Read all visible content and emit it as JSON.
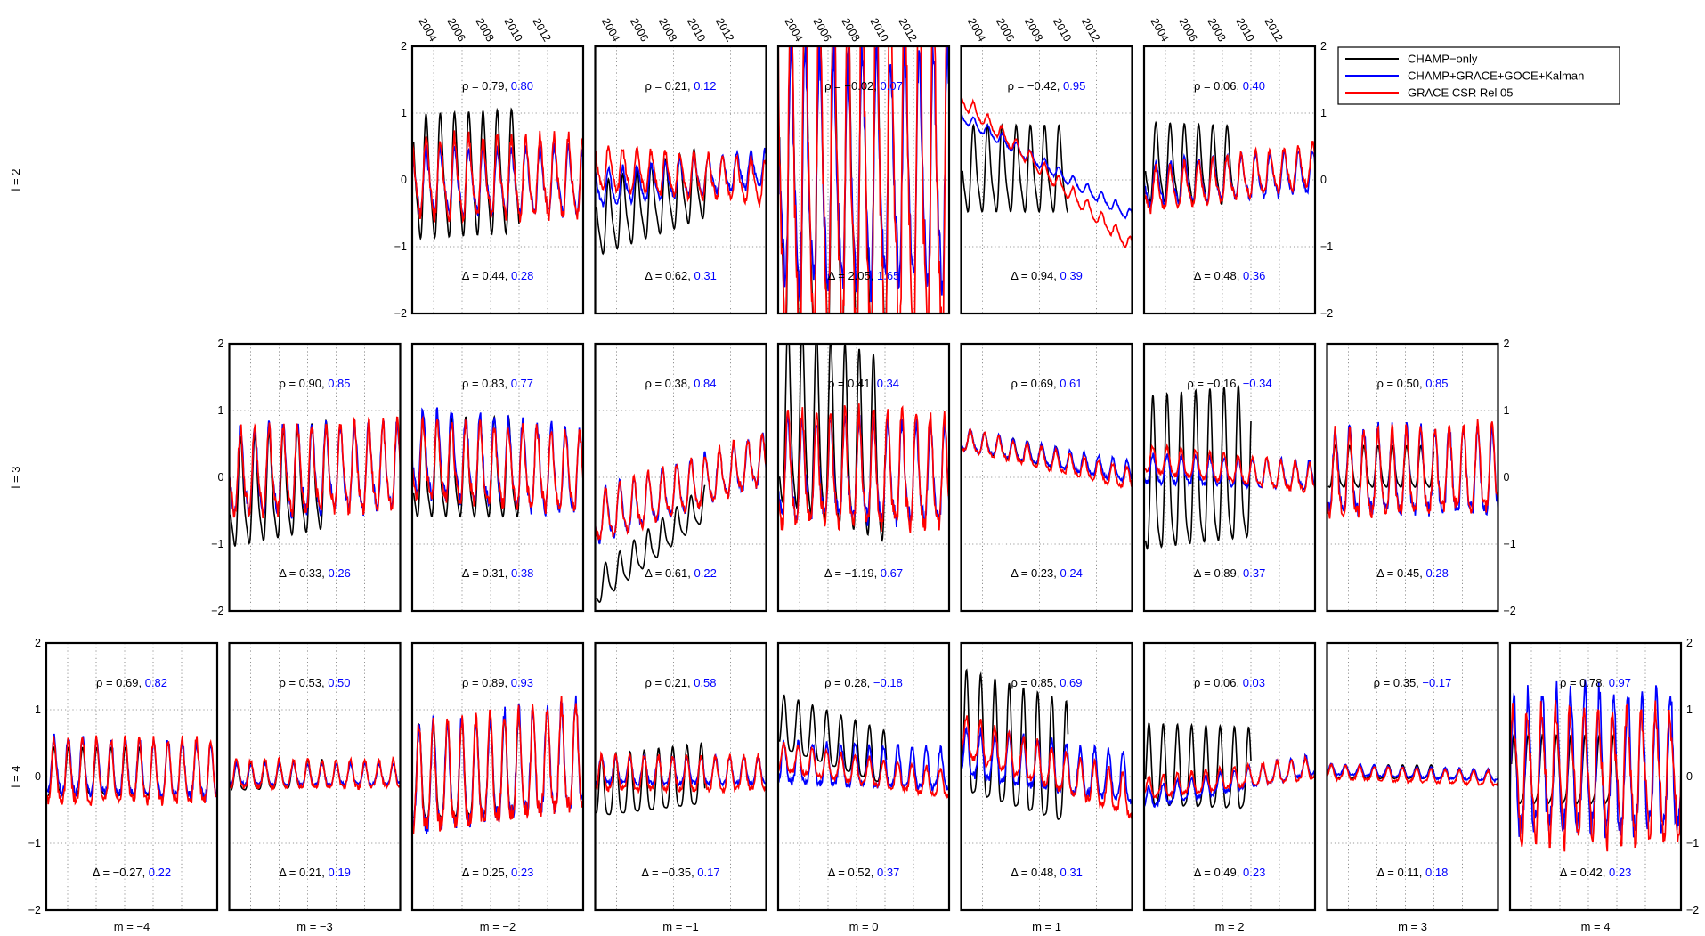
{
  "figure": {
    "x_tick_labels": [
      "2004",
      "2006",
      "2008",
      "2010",
      "2012"
    ],
    "y_tick_labels": [
      "2",
      "1",
      "0",
      "−1",
      "−2"
    ]
  },
  "chart_data": {
    "type": "line",
    "layout": "grid of panels, rows = degree l (2,3,4), columns = order m (-4..4)",
    "xlim": [
      2002.5,
      2014.5
    ],
    "ylim": [
      -2,
      2
    ],
    "x_ticks": [
      2004,
      2006,
      2008,
      2010,
      2012
    ],
    "y_ticks": [
      -2,
      -1,
      0,
      1,
      2
    ],
    "grid": "dotted vertical and horizontal",
    "legend": {
      "placement": "top-right",
      "entries": [
        {
          "name": "CHAMP−only",
          "color": "#000000"
        },
        {
          "name": "CHAMP+GRACE+GOCE+Kalman",
          "color": "#0000ff"
        },
        {
          "name": "GRACE CSR Rel 05",
          "color": "#ff0000"
        }
      ]
    },
    "row_labels": [
      "l = 2",
      "l = 3",
      "l = 4"
    ],
    "column_labels": [
      "m = −4",
      "m = −3",
      "m = −2",
      "m = −1",
      "m = 0",
      "m = 1",
      "m = 2",
      "m = 3",
      "m = 4"
    ],
    "panels": [
      {
        "l": 2,
        "m": -2,
        "rho": [
          "ρ = 0.79,",
          "0.80"
        ],
        "delta": [
          "Δ = 0.44,",
          "0.28"
        ],
        "series": {
          "champ": {
            "amp": 0.85,
            "trend": 0.15,
            "bias": 0.05,
            "end": 2010.0
          },
          "kalman": {
            "amp": 0.45,
            "trend": 0.0,
            "bias": -0.05
          },
          "grace": {
            "amp": 0.55,
            "trend": 0.0,
            "bias": 0.0
          }
        }
      },
      {
        "l": 2,
        "m": -1,
        "rho": [
          "ρ = 0.21,",
          "0.12"
        ],
        "delta": [
          "Δ = 0.62,",
          "0.31"
        ],
        "series": {
          "champ": {
            "amp": 0.5,
            "trend": 0.9,
            "bias": -0.2,
            "end": 2010.3
          },
          "kalman": {
            "amp": 0.25,
            "trend": 0.3,
            "bias": 0.0
          },
          "grace": {
            "amp": 0.3,
            "trend": -0.2,
            "bias": 0.05
          }
        }
      },
      {
        "l": 2,
        "m": 0,
        "rho": [
          "ρ = −0.02,",
          "0.07"
        ],
        "delta": [
          "Δ = 2.05,",
          "1.65"
        ],
        "series": {
          "champ": {
            "amp": 2.4,
            "trend": 0.0,
            "bias": 0.0,
            "end": 2010.2
          },
          "kalman": {
            "amp": 1.6,
            "trend": 0.0,
            "bias": 0.0
          },
          "grace": {
            "amp": 2.6,
            "trend": 0.0,
            "bias": 0.0
          }
        }
      },
      {
        "l": 2,
        "m": 1,
        "rho": [
          "ρ = −0.42,",
          "0.95"
        ],
        "delta": [
          "Δ = 0.94,",
          "0.39"
        ],
        "series": {
          "champ": {
            "amp": 0.6,
            "trend": 0.0,
            "bias": 0.1,
            "end": 2010.0
          },
          "kalman": {
            "amp": 0.08,
            "trend": -1.5,
            "bias": 0.2
          },
          "grace": {
            "amp": 0.1,
            "trend": -2.2,
            "bias": 0.1
          }
        }
      },
      {
        "l": 2,
        "m": 2,
        "rho": [
          "ρ = 0.06,",
          "0.40"
        ],
        "delta": [
          "Δ = 0.48,",
          "0.36"
        ],
        "series": {
          "champ": {
            "amp": 0.55,
            "trend": -0.1,
            "bias": 0.15,
            "end": 2008.7
          },
          "kalman": {
            "amp": 0.3,
            "trend": 0.2,
            "bias": 0.0
          },
          "grace": {
            "amp": 0.3,
            "trend": 0.4,
            "bias": 0.0
          }
        }
      },
      {
        "l": 3,
        "m": -3,
        "rho": [
          "ρ = 0.90,",
          "0.85"
        ],
        "delta": [
          "Δ = 0.33,",
          "0.26"
        ],
        "series": {
          "champ": {
            "amp": 0.75,
            "trend": 0.5,
            "bias": -0.1,
            "end": 2009.5
          },
          "kalman": {
            "amp": 0.6,
            "trend": 0.1,
            "bias": 0.05
          },
          "grace": {
            "amp": 0.6,
            "trend": 0.1,
            "bias": 0.05
          }
        }
      },
      {
        "l": 3,
        "m": -2,
        "rho": [
          "ρ = 0.83,",
          "0.77"
        ],
        "delta": [
          "Δ = 0.31,",
          "0.38"
        ],
        "series": {
          "champ": {
            "amp": 0.7,
            "trend": 0.0,
            "bias": 0.05,
            "end": 2010.0
          },
          "kalman": {
            "amp": 0.6,
            "trend": -0.3,
            "bias": 0.15
          },
          "grace": {
            "amp": 0.55,
            "trend": -0.2,
            "bias": 0.1
          }
        }
      },
      {
        "l": 3,
        "m": -1,
        "rho": [
          "ρ = 0.38,",
          "0.84"
        ],
        "delta": [
          "Δ = 0.61,",
          "0.22"
        ],
        "series": {
          "champ": {
            "amp": 0.25,
            "trend": 2.0,
            "bias": -0.7,
            "end": 2010.2
          },
          "kalman": {
            "amp": 0.35,
            "trend": 0.9,
            "bias": -0.2
          },
          "grace": {
            "amp": 0.35,
            "trend": 0.9,
            "bias": -0.2
          }
        }
      },
      {
        "l": 3,
        "m": 0,
        "rho": [
          "ρ = 0.41,",
          "0.34"
        ],
        "delta": [
          "Δ = −1.19,",
          "0.67"
        ],
        "series": {
          "champ": {
            "amp": 1.3,
            "trend": -1.0,
            "bias": 0.3,
            "end": 2010.0
          },
          "kalman": {
            "amp": 0.7,
            "trend": -0.1,
            "bias": 0.0
          },
          "grace": {
            "amp": 0.8,
            "trend": 0.0,
            "bias": 0.0
          }
        }
      },
      {
        "l": 3,
        "m": 1,
        "rho": [
          "ρ = 0.69,",
          "0.61"
        ],
        "delta": [
          "Δ = 0.23,",
          "0.24"
        ],
        "series": {
          "champ": {
            "amp": 0.15,
            "trend": -0.5,
            "bias": 0.3,
            "end": 2009.5
          },
          "kalman": {
            "amp": 0.15,
            "trend": -0.5,
            "bias": 0.3
          },
          "grace": {
            "amp": 0.15,
            "trend": -0.6,
            "bias": 0.25
          }
        }
      },
      {
        "l": 3,
        "m": 2,
        "rho": [
          "ρ = −0.16,",
          "−0.34"
        ],
        "delta": [
          "Δ = 0.89,",
          "0.37"
        ],
        "series": {
          "champ": {
            "amp": 1.1,
            "trend": 0.3,
            "bias": 0.0,
            "end": 2010.0
          },
          "kalman": {
            "amp": 0.2,
            "trend": -0.1,
            "bias": 0.05
          },
          "grace": {
            "amp": 0.2,
            "trend": -0.3,
            "bias": 0.1
          }
        }
      },
      {
        "l": 3,
        "m": 3,
        "rho": [
          "ρ = 0.50,",
          "0.85"
        ],
        "delta": [
          "Δ = 0.45,",
          "0.28"
        ],
        "series": {
          "champ": {
            "amp": 0.3,
            "trend": 0.0,
            "bias": 0.1,
            "end": 2010.0
          },
          "kalman": {
            "amp": 0.6,
            "trend": 0.0,
            "bias": 0.0
          },
          "grace": {
            "amp": 0.6,
            "trend": 0.1,
            "bias": 0.0
          }
        }
      },
      {
        "l": 4,
        "m": -4,
        "rho": [
          "ρ = 0.69,",
          "0.82"
        ],
        "delta": [
          "Δ = −0.27,",
          "0.22"
        ],
        "series": {
          "champ": {
            "amp": 0.35,
            "trend": 0.0,
            "bias": 0.0,
            "end": 2009.8
          },
          "kalman": {
            "amp": 0.4,
            "trend": -0.1,
            "bias": 0.05
          },
          "grace": {
            "amp": 0.45,
            "trend": 0.0,
            "bias": 0.0
          }
        }
      },
      {
        "l": 4,
        "m": -3,
        "rho": [
          "ρ = 0.53,",
          "0.50"
        ],
        "delta": [
          "Δ = 0.21,",
          "0.19"
        ],
        "series": {
          "champ": {
            "amp": 0.2,
            "trend": 0.1,
            "bias": 0.0,
            "end": 2009.6
          },
          "kalman": {
            "amp": 0.15,
            "trend": 0.0,
            "bias": 0.0
          },
          "grace": {
            "amp": 0.2,
            "trend": 0.0,
            "bias": 0.0
          }
        }
      },
      {
        "l": 4,
        "m": -2,
        "rho": [
          "ρ = 0.89,",
          "0.93"
        ],
        "delta": [
          "Δ = 0.25,",
          "0.23"
        ],
        "series": {
          "champ": {
            "amp": 0.7,
            "trend": 0.2,
            "bias": 0.0,
            "end": 2010.0
          },
          "kalman": {
            "amp": 0.75,
            "trend": 0.4,
            "bias": 0.0
          },
          "grace": {
            "amp": 0.75,
            "trend": 0.4,
            "bias": 0.0
          }
        }
      },
      {
        "l": 4,
        "m": -1,
        "rho": [
          "ρ = 0.21,",
          "0.58"
        ],
        "delta": [
          "Δ = −0.35,",
          "0.17"
        ],
        "series": {
          "champ": {
            "amp": 0.45,
            "trend": 0.3,
            "bias": -0.1,
            "end": 2010.2
          },
          "kalman": {
            "amp": 0.2,
            "trend": 0.0,
            "bias": 0.05
          },
          "grace": {
            "amp": 0.25,
            "trend": 0.0,
            "bias": 0.0
          }
        }
      },
      {
        "l": 4,
        "m": 0,
        "rho": [
          "ρ = 0.28,",
          "−0.18"
        ],
        "delta": [
          "Δ = 0.52,",
          "0.37"
        ],
        "series": {
          "champ": {
            "amp": 0.4,
            "trend": -0.9,
            "bias": 0.3,
            "end": 2010.1
          },
          "kalman": {
            "amp": 0.3,
            "trend": -0.1,
            "bias": 0.1
          },
          "grace": {
            "amp": 0.2,
            "trend": -0.4,
            "bias": 0.05
          }
        }
      },
      {
        "l": 4,
        "m": 1,
        "rho": [
          "ρ = 0.85,",
          "0.69"
        ],
        "delta": [
          "Δ = 0.48,",
          "0.31"
        ],
        "series": {
          "champ": {
            "amp": 0.9,
            "trend": -0.8,
            "bias": 0.1,
            "end": 2010.0
          },
          "kalman": {
            "amp": 0.35,
            "trend": -0.4,
            "bias": 0.1
          },
          "grace": {
            "amp": 0.3,
            "trend": -0.9,
            "bias": 0.1
          }
        }
      },
      {
        "l": 4,
        "m": 2,
        "rho": [
          "ρ = 0.06,",
          "0.03"
        ],
        "delta": [
          "Δ = 0.49,",
          "0.23"
        ],
        "series": {
          "champ": {
            "amp": 0.6,
            "trend": -0.1,
            "bias": 0.0,
            "end": 2010.0
          },
          "kalman": {
            "amp": 0.15,
            "trend": 0.5,
            "bias": -0.1
          },
          "grace": {
            "amp": 0.15,
            "trend": 0.3,
            "bias": -0.05
          }
        }
      },
      {
        "l": 4,
        "m": 3,
        "rho": [
          "ρ = 0.35,",
          "−0.17"
        ],
        "delta": [
          "Δ = 0.11,",
          "0.18"
        ],
        "series": {
          "champ": {
            "amp": 0.1,
            "trend": 0.0,
            "bias": 0.05,
            "end": 2010.0
          },
          "kalman": {
            "amp": 0.08,
            "trend": -0.1,
            "bias": 0.05
          },
          "grace": {
            "amp": 0.1,
            "trend": -0.1,
            "bias": 0.0
          }
        }
      },
      {
        "l": 4,
        "m": 4,
        "rho": [
          "ρ = 0.78,",
          "0.97"
        ],
        "delta": [
          "Δ = 0.42,",
          "0.23"
        ],
        "series": {
          "champ": {
            "amp": 0.5,
            "trend": 0.0,
            "bias": 0.0,
            "end": 2010.0
          },
          "kalman": {
            "amp": 1.0,
            "trend": 0.0,
            "bias": 0.05
          },
          "grace": {
            "amp": 0.9,
            "trend": 0.0,
            "bias": 0.0
          }
        }
      }
    ]
  }
}
